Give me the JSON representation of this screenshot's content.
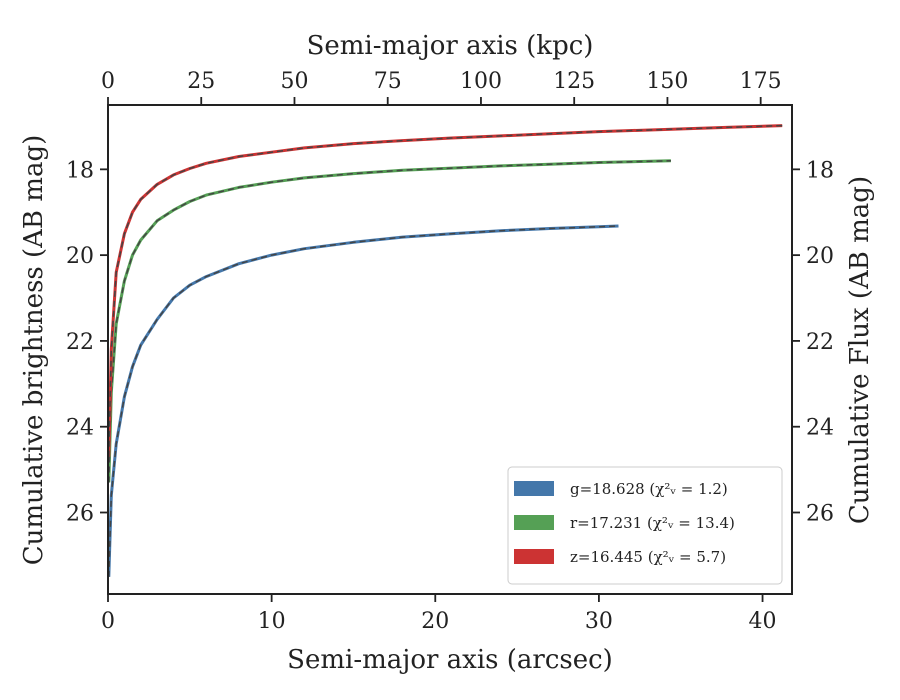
{
  "chart_data": {
    "type": "line",
    "xlabel": "Semi-major axis (arcsec)",
    "x2label": "Semi-major axis (kpc)",
    "ylabel": "Cumulative brightness (AB mag)",
    "y2label": "Cumulative Flux (AB mag)",
    "xlim": [
      0,
      41.8
    ],
    "x2lim": [
      0,
      183.4
    ],
    "ylim": [
      27.9,
      16.5
    ],
    "y_inverted": true,
    "xticks": [
      "0",
      "10",
      "20",
      "30",
      "40"
    ],
    "x2ticks": [
      "0",
      "25",
      "50",
      "75",
      "100",
      "125",
      "150",
      "175"
    ],
    "yticks": [
      "18",
      "20",
      "22",
      "24",
      "26"
    ],
    "y2ticks": [
      "18",
      "20",
      "22",
      "24",
      "26"
    ],
    "legend_position": "lower-right",
    "grid": false,
    "model_line_color": "#444444",
    "series": [
      {
        "name": "g",
        "legend_label": "g=18.628 (χ²ᵥ = 1.2)",
        "color": "#4477aa",
        "x": [
          0.05,
          0.2,
          0.5,
          1.0,
          1.5,
          2.0,
          3.0,
          4.0,
          5.0,
          6.0,
          8.0,
          10.0,
          12.0,
          15.0,
          18.0,
          21.0,
          24.0,
          27.0,
          30.0,
          31.2
        ],
        "y": [
          27.5,
          25.6,
          24.4,
          23.3,
          22.6,
          22.1,
          21.5,
          21.0,
          20.7,
          20.5,
          20.2,
          20.0,
          19.85,
          19.7,
          19.58,
          19.5,
          19.43,
          19.38,
          19.34,
          19.32
        ]
      },
      {
        "name": "r",
        "legend_label": "r=17.231 (χ²ᵥ = 13.4)",
        "color": "#55a055",
        "x": [
          0.05,
          0.2,
          0.5,
          1.0,
          1.5,
          2.0,
          3.0,
          4.0,
          5.0,
          6.0,
          8.0,
          10.0,
          12.0,
          15.0,
          18.0,
          21.0,
          24.0,
          27.0,
          30.0,
          34.4
        ],
        "y": [
          25.3,
          23.2,
          21.6,
          20.6,
          20.0,
          19.65,
          19.2,
          18.95,
          18.75,
          18.6,
          18.42,
          18.3,
          18.2,
          18.1,
          18.02,
          17.97,
          17.92,
          17.88,
          17.84,
          17.8
        ]
      },
      {
        "name": "z",
        "legend_label": "z=16.445 (χ²ᵥ = 5.7)",
        "color": "#cc3333",
        "x": [
          0.05,
          0.2,
          0.5,
          1.0,
          1.5,
          2.0,
          3.0,
          4.0,
          5.0,
          6.0,
          8.0,
          10.0,
          12.0,
          15.0,
          18.0,
          21.0,
          24.0,
          27.0,
          30.0,
          34.0,
          38.0,
          41.2
        ],
        "y": [
          24.7,
          22.2,
          20.4,
          19.5,
          19.0,
          18.7,
          18.35,
          18.13,
          17.98,
          17.86,
          17.7,
          17.6,
          17.5,
          17.4,
          17.33,
          17.27,
          17.22,
          17.17,
          17.12,
          17.07,
          17.02,
          16.98
        ]
      }
    ]
  }
}
